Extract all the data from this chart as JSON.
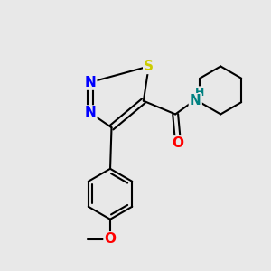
{
  "background_color": "#e8e8e8",
  "bond_color": "#000000",
  "bond_width": 1.5,
  "atom_colors": {
    "N": "#0000ff",
    "S": "#cccc00",
    "O_amide": "#ff0000",
    "O_methoxy": "#ff0000",
    "NH": "#008080",
    "C": "#000000"
  },
  "figsize": [
    3.0,
    3.0
  ],
  "dpi": 100,
  "xlim": [
    0,
    10
  ],
  "ylim": [
    0,
    10
  ]
}
